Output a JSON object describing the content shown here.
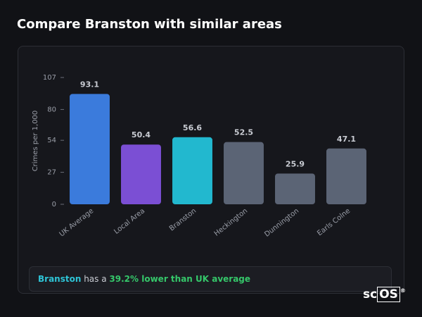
{
  "chart_data": {
    "type": "bar",
    "title": "Compare Branston with similar areas",
    "ylabel": "Crimes per 1,000",
    "categories": [
      "UK Average",
      "Local Area",
      "Branston",
      "Heckington",
      "Dunnington",
      "Earls Colne"
    ],
    "values": [
      93.1,
      50.4,
      56.6,
      52.5,
      25.9,
      47.1
    ],
    "colors": [
      "#3b7bdc",
      "#7b4fd4",
      "#22b8cf",
      "#5b6475",
      "#5b6475",
      "#5b6475"
    ],
    "ylim": [
      0,
      107
    ],
    "yticks": [
      0,
      27,
      54,
      80,
      107
    ],
    "grid": false
  },
  "summary": {
    "area": "Branston",
    "connector": "has a",
    "highlight": "39.2% lower than UK average"
  },
  "logo": {
    "prefix": "sc",
    "boxed": "OS",
    "mark": "®"
  }
}
